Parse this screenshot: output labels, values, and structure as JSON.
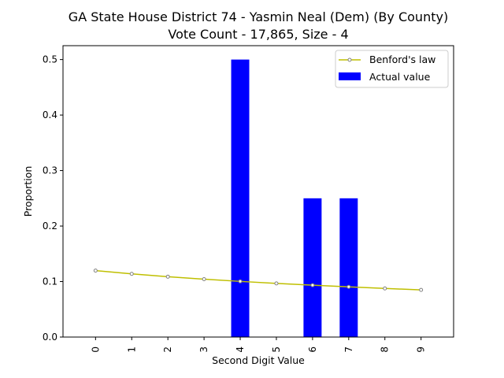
{
  "chart_data": {
    "type": "bar",
    "title_line1": "GA State House District 74 - Yasmin Neal (Dem) (By County)",
    "title_line2": "Vote Count - 17,865, Size - 4",
    "xlabel": "Second Digit Value",
    "ylabel": "Proportion",
    "categories": [
      "0",
      "1",
      "2",
      "3",
      "4",
      "5",
      "6",
      "7",
      "8",
      "9"
    ],
    "ylim": [
      0,
      0.525
    ],
    "yticks": [
      "0.0",
      "0.1",
      "0.2",
      "0.3",
      "0.4",
      "0.5"
    ],
    "series": [
      {
        "name": "Actual value",
        "type": "bar",
        "color": "#0000ff",
        "values": [
          0,
          0,
          0,
          0,
          0.5,
          0,
          0.25,
          0.25,
          0,
          0
        ]
      },
      {
        "name": "Benford's law",
        "type": "line",
        "color": "#bfbf00",
        "marker_color": "#808080",
        "values": [
          0.1197,
          0.1139,
          0.1088,
          0.1043,
          0.1003,
          0.0967,
          0.0934,
          0.0904,
          0.0876,
          0.085
        ]
      }
    ],
    "legend_position": "top-right",
    "grid": false
  }
}
